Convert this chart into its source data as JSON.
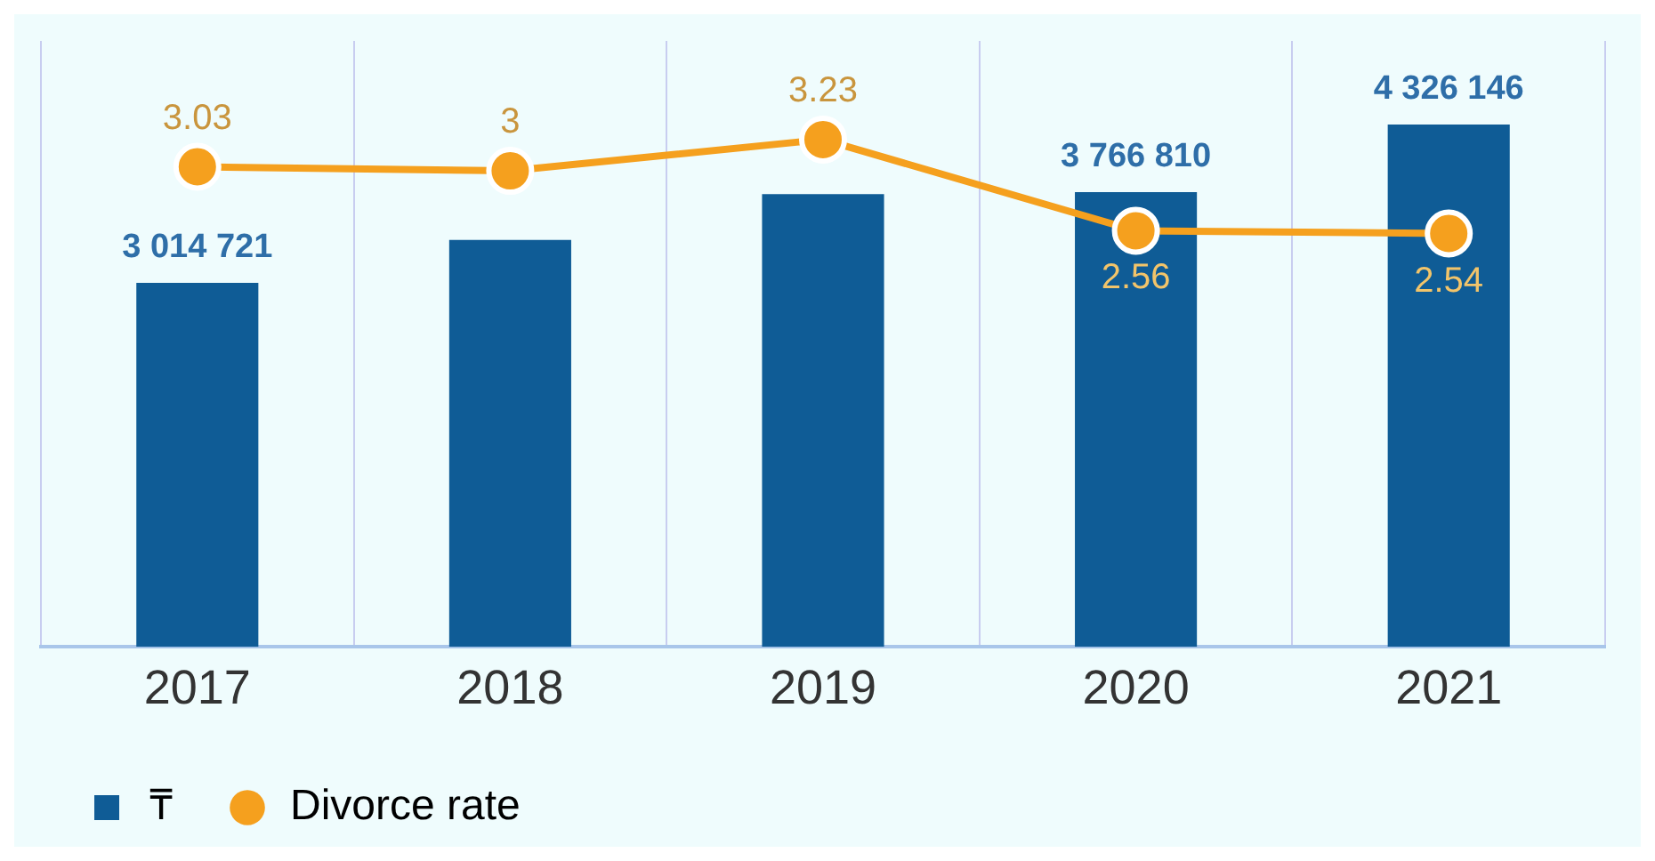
{
  "chart_data": {
    "type": "bar",
    "categories": [
      "2017",
      "2018",
      "2019",
      "2020",
      "2021"
    ],
    "series": [
      {
        "name": "₸",
        "color": "#0f5c96",
        "values": [
          3014721,
          3370000,
          3750000,
          3766810,
          4326146
        ],
        "value_labels": [
          "3 014 721",
          null,
          null,
          "3 766 810",
          "4 326 146"
        ]
      },
      {
        "name": "Divorce rate",
        "type": "line",
        "axis": "y2",
        "color": "#f5a01e",
        "values": [
          3.03,
          3,
          3.23,
          2.56,
          2.54
        ],
        "value_labels": [
          "3.03",
          "3",
          "3.23",
          "2.56",
          "2.54"
        ]
      }
    ],
    "grid": "x",
    "legend": "bottom",
    "marker": "circle",
    "line_style": "solid"
  }
}
